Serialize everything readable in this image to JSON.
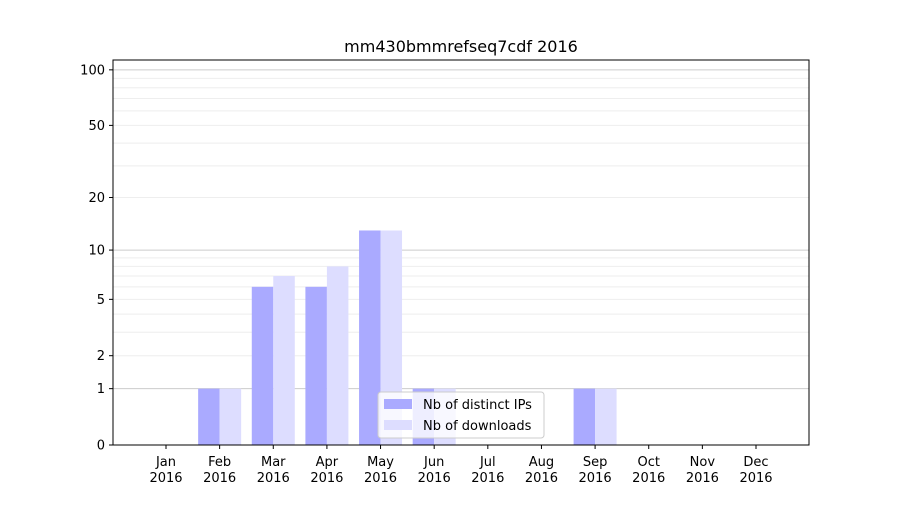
{
  "chart_data": {
    "type": "bar",
    "title": "mm430bmmrefseq7cdf 2016",
    "xlabel": "",
    "ylabel": "",
    "yscale": "log(1+y)",
    "ylim": [
      0,
      113
    ],
    "yticks": [
      0,
      1,
      2,
      5,
      10,
      20,
      50,
      100
    ],
    "grid": true,
    "legend_position": "lower-center",
    "categories": [
      "Jan\n2016",
      "Feb\n2016",
      "Mar\n2016",
      "Apr\n2016",
      "May\n2016",
      "Jun\n2016",
      "Jul\n2016",
      "Aug\n2016",
      "Sep\n2016",
      "Oct\n2016",
      "Nov\n2016",
      "Dec\n2016"
    ],
    "series": [
      {
        "name": "Nb of distinct IPs",
        "color": "#aaaaff",
        "values": [
          0,
          1,
          6,
          6,
          13,
          1,
          0,
          0,
          1,
          0,
          0,
          0
        ]
      },
      {
        "name": "Nb of downloads",
        "color": "#ddddff",
        "values": [
          0,
          1,
          7,
          8,
          13,
          1,
          0,
          0,
          1,
          0,
          0,
          0
        ]
      }
    ]
  }
}
